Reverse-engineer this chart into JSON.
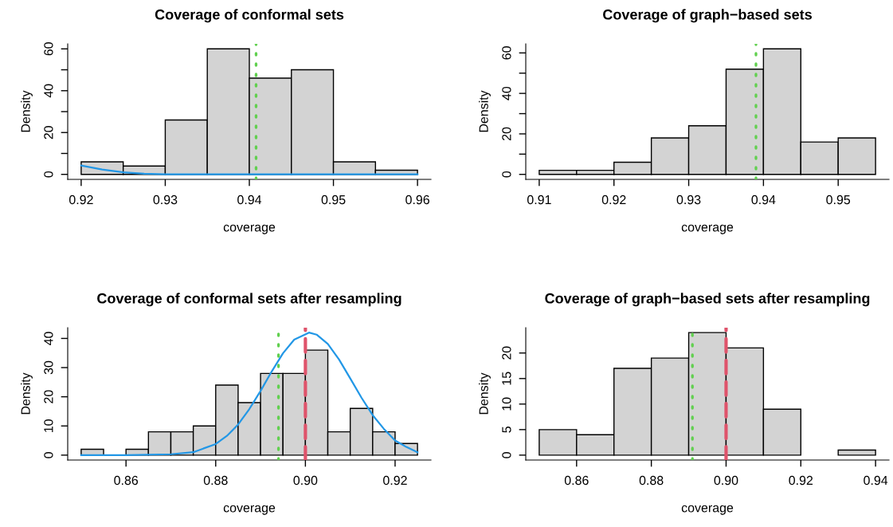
{
  "chart_data": [
    {
      "type": "histogram",
      "title": "Coverage of conformal sets",
      "xlabel": "coverage",
      "ylabel": "Density",
      "bins": [
        0.92,
        0.925,
        0.93,
        0.935,
        0.94,
        0.945,
        0.95,
        0.955,
        0.96
      ],
      "series": [
        {
          "color": "#d3d3d3",
          "values": [
            6,
            4,
            26,
            60,
            46,
            50,
            6,
            2
          ]
        },
        {
          "type": "line",
          "color": "#2297e6",
          "x": [
            0.92,
            0.9225,
            0.925,
            0.9275,
            0.93,
            0.94,
            0.95,
            0.96
          ],
          "values": [
            4.2,
            2.3,
            1.0,
            0.3,
            0,
            0,
            0,
            0
          ]
        }
      ],
      "ref_lines": [
        {
          "axis": "x",
          "value": 0.9408,
          "color": "#61d04f",
          "line_style": "dotted"
        }
      ],
      "xlim": [
        0.9184,
        0.9616
      ],
      "xticks": [
        0.92,
        0.93,
        0.94,
        0.95,
        0.96
      ],
      "ylim": [
        -2.4,
        62.4
      ],
      "yticks": [
        0,
        {
          "value": 10,
          "label": null
        },
        20,
        {
          "value": 30,
          "label": null
        },
        40,
        {
          "value": 50,
          "label": null
        },
        60
      ]
    },
    {
      "type": "histogram",
      "title": "Coverage of graph−based sets",
      "xlabel": "coverage",
      "ylabel": "Density",
      "bins": [
        0.91,
        0.915,
        0.92,
        0.925,
        0.93,
        0.935,
        0.94,
        0.945,
        0.95,
        0.955
      ],
      "series": [
        {
          "color": "#d3d3d3",
          "values": [
            2,
            2,
            6,
            18,
            24,
            52,
            62,
            16,
            18
          ]
        }
      ],
      "ref_lines": [
        {
          "axis": "x",
          "value": 0.939,
          "color": "#61d04f",
          "line_style": "dotted"
        }
      ],
      "xlim": [
        0.9082,
        0.9568
      ],
      "xticks": [
        0.91,
        0.92,
        0.93,
        0.94,
        0.95
      ],
      "ylim": [
        -2.48,
        64.48
      ],
      "yticks": [
        0,
        {
          "value": 10,
          "label": null
        },
        20,
        {
          "value": 30,
          "label": null
        },
        40,
        {
          "value": 50,
          "label": null
        },
        60
      ]
    },
    {
      "type": "histogram",
      "title": "Coverage of conformal sets after resampling",
      "xlabel": "coverage",
      "ylabel": "Density",
      "bins": [
        0.85,
        0.855,
        0.86,
        0.865,
        0.87,
        0.875,
        0.88,
        0.885,
        0.89,
        0.895,
        0.9,
        0.905,
        0.91,
        0.915,
        0.92,
        0.925
      ],
      "series": [
        {
          "color": "#d3d3d3",
          "values": [
            2,
            0,
            2,
            8,
            8,
            10,
            24,
            18,
            28,
            28,
            36,
            8,
            16,
            8,
            4
          ]
        },
        {
          "type": "line",
          "color": "#2297e6",
          "x": [
            0.85,
            0.86,
            0.87,
            0.875,
            0.88,
            0.8825,
            0.885,
            0.8875,
            0.89,
            0.8925,
            0.895,
            0.8975,
            0.9008,
            0.9025,
            0.905,
            0.9075,
            0.91,
            0.9125,
            0.915,
            0.9175,
            0.92,
            0.9225,
            0.925
          ],
          "values": [
            0,
            0,
            0.3,
            1.0,
            3.8,
            6.6,
            10.5,
            15.8,
            22,
            28.7,
            34.9,
            39.6,
            42,
            41.3,
            38.1,
            32.8,
            26.3,
            19.7,
            13.7,
            9.0,
            5.0,
            2.8,
            1.0
          ]
        }
      ],
      "ref_lines": [
        {
          "axis": "x",
          "value": 0.894,
          "color": "#61d04f",
          "line_style": "dotted"
        },
        {
          "axis": "x",
          "value": 0.9,
          "color": "#df536b",
          "line_style": "dashed"
        }
      ],
      "xlim": [
        0.847,
        0.928
      ],
      "xticks": [
        0.86,
        0.88,
        {
          "value": 0.9,
          "label": "0.90"
        },
        0.92
      ],
      "ylim": [
        -1.68,
        43.68
      ],
      "yticks": [
        0,
        10,
        20,
        30,
        40
      ]
    },
    {
      "type": "histogram",
      "title": "Coverage of graph−based sets after resampling",
      "xlabel": "coverage",
      "ylabel": "Density",
      "bins": [
        0.85,
        0.86,
        0.87,
        0.88,
        0.89,
        0.9,
        0.91,
        0.92,
        0.93,
        0.94
      ],
      "series": [
        {
          "color": "#d3d3d3",
          "values": [
            5,
            4,
            17,
            19,
            24,
            21,
            9,
            0,
            1
          ]
        }
      ],
      "ref_lines": [
        {
          "axis": "x",
          "value": 0.891,
          "color": "#61d04f",
          "line_style": "dotted"
        },
        {
          "axis": "x",
          "value": 0.9,
          "color": "#df536b",
          "line_style": "dashed"
        }
      ],
      "xlim": [
        0.8464,
        0.9436
      ],
      "xticks": [
        0.86,
        0.88,
        {
          "value": 0.9,
          "label": "0.90"
        },
        0.92,
        0.94
      ],
      "ylim": [
        -0.96,
        24.96
      ],
      "yticks": [
        0,
        5,
        10,
        15,
        20
      ]
    }
  ]
}
